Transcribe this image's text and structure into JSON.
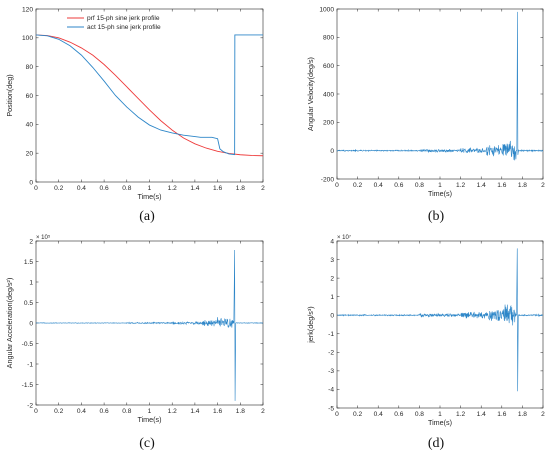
{
  "captions": [
    "(a)",
    "(b)",
    "(c)",
    "(d)"
  ],
  "colors": {
    "actual": "#2d86c8",
    "profile": "#ee3b3b",
    "axis": "#262626"
  },
  "chart_data": [
    {
      "id": "a",
      "type": "line",
      "title": "",
      "xlabel": "Time(s)",
      "ylabel": "Position(deg)",
      "xlim": [
        0,
        2
      ],
      "ylim": [
        0,
        120
      ],
      "xticks": [
        "0",
        "0.2",
        "0.4",
        "0.6",
        "0.8",
        "1",
        "1.2",
        "1.4",
        "1.6",
        "1.8",
        "2"
      ],
      "yticks": [
        "0",
        "20",
        "40",
        "60",
        "80",
        "100",
        "120"
      ],
      "exponent": "",
      "grid": false,
      "legend": {
        "position": "top",
        "entries": [
          "prf 15-ph sine jerk profile",
          "act 15-ph sine jerk profile"
        ]
      },
      "series": [
        {
          "name": "prf 15-ph sine jerk profile",
          "color": "#ee3b3b",
          "x": [
            0,
            0.1,
            0.2,
            0.3,
            0.4,
            0.5,
            0.6,
            0.7,
            0.8,
            0.9,
            1.0,
            1.1,
            1.2,
            1.3,
            1.4,
            1.5,
            1.6,
            1.7,
            1.8,
            1.9,
            2.0
          ],
          "y": [
            102,
            101.6,
            100,
            97,
            93,
            88,
            81.5,
            74,
            66,
            58,
            50,
            42.5,
            36,
            30.5,
            26.5,
            23.5,
            21.3,
            19.8,
            18.9,
            18.4,
            18.2
          ]
        },
        {
          "name": "act 15-ph sine jerk profile",
          "color": "#2d86c8",
          "x": [
            0,
            0.1,
            0.2,
            0.3,
            0.4,
            0.5,
            0.6,
            0.7,
            0.8,
            0.9,
            1.0,
            1.1,
            1.2,
            1.3,
            1.4,
            1.45,
            1.5,
            1.55,
            1.6,
            1.62,
            1.65,
            1.7,
            1.75,
            1.752,
            1.8,
            1.9,
            2.0
          ],
          "y": [
            102,
            101.4,
            99,
            94.5,
            88,
            79.5,
            70,
            60,
            52,
            45,
            39.5,
            36,
            34,
            32.5,
            31.5,
            31,
            31,
            31,
            30,
            23,
            21,
            19.5,
            19,
            102,
            102,
            102,
            102
          ]
        }
      ]
    },
    {
      "id": "b",
      "type": "line",
      "title": "",
      "xlabel": "Time(s)",
      "ylabel": "Angular Velocity(deg/s)",
      "xlim": [
        0,
        2
      ],
      "ylim": [
        -200,
        1000
      ],
      "xticks": [
        "0",
        "0.2",
        "0.4",
        "0.6",
        "0.8",
        "1",
        "1.2",
        "1.4",
        "1.6",
        "1.8",
        "2"
      ],
      "yticks": [
        "-200",
        "0",
        "200",
        "400",
        "600",
        "800",
        "1000"
      ],
      "exponent": "",
      "grid": false,
      "signal": {
        "baseline": 0,
        "noise_bands": [
          [
            0,
            0.8,
            5
          ],
          [
            0.8,
            1.2,
            12
          ],
          [
            1.2,
            1.45,
            22
          ],
          [
            1.45,
            1.6,
            45
          ],
          [
            1.6,
            1.74,
            75
          ]
        ],
        "spike_time": 1.752,
        "spike_values": [
          980,
          -30
        ]
      },
      "series": [
        {
          "color": "#2d86c8"
        }
      ]
    },
    {
      "id": "c",
      "type": "line",
      "title": "",
      "xlabel": "Time(s)",
      "ylabel": "Angular Acceleration(deg/s²)",
      "xlim": [
        0,
        2
      ],
      "ylim": [
        -2,
        2
      ],
      "xticks": [
        "0",
        "0.2",
        "0.4",
        "0.6",
        "0.8",
        "1",
        "1.2",
        "1.4",
        "1.6",
        "1.8",
        "2"
      ],
      "yticks": [
        "-2",
        "-1.5",
        "-1",
        "-0.5",
        "0",
        "0.5",
        "1",
        "1.5",
        "2"
      ],
      "exponent": "× 10⁵",
      "grid": false,
      "signal": {
        "baseline": 0,
        "noise_bands": [
          [
            0,
            0.8,
            0.008
          ],
          [
            0.8,
            1.2,
            0.02
          ],
          [
            1.2,
            1.45,
            0.04
          ],
          [
            1.45,
            1.6,
            0.09
          ],
          [
            1.6,
            1.74,
            0.15
          ]
        ],
        "spike_time": 1.75,
        "spike_values": [
          1.78,
          -1.9
        ]
      },
      "series": [
        {
          "color": "#2d86c8"
        }
      ]
    },
    {
      "id": "d",
      "type": "line",
      "title": "",
      "xlabel": "Time(s)",
      "ylabel": "jerk(deg/s³)",
      "xlim": [
        0,
        2
      ],
      "ylim": [
        -5,
        4
      ],
      "xticks": [
        "0",
        "0.2",
        "0.4",
        "0.6",
        "0.8",
        "1",
        "1.2",
        "1.4",
        "1.6",
        "1.8",
        "2"
      ],
      "yticks": [
        "-5",
        "-4",
        "-3",
        "-2",
        "-1",
        "0",
        "1",
        "2",
        "3",
        "4"
      ],
      "exponent": "× 10⁷",
      "grid": false,
      "signal": {
        "baseline": 0,
        "noise_bands": [
          [
            0,
            0.8,
            0.04
          ],
          [
            0.8,
            1.2,
            0.1
          ],
          [
            1.2,
            1.45,
            0.2
          ],
          [
            1.45,
            1.6,
            0.4
          ],
          [
            1.6,
            1.74,
            0.65
          ]
        ],
        "spike_time": 1.75,
        "spike_values": [
          3.6,
          -4.1
        ]
      },
      "series": [
        {
          "color": "#2d86c8"
        }
      ]
    }
  ]
}
